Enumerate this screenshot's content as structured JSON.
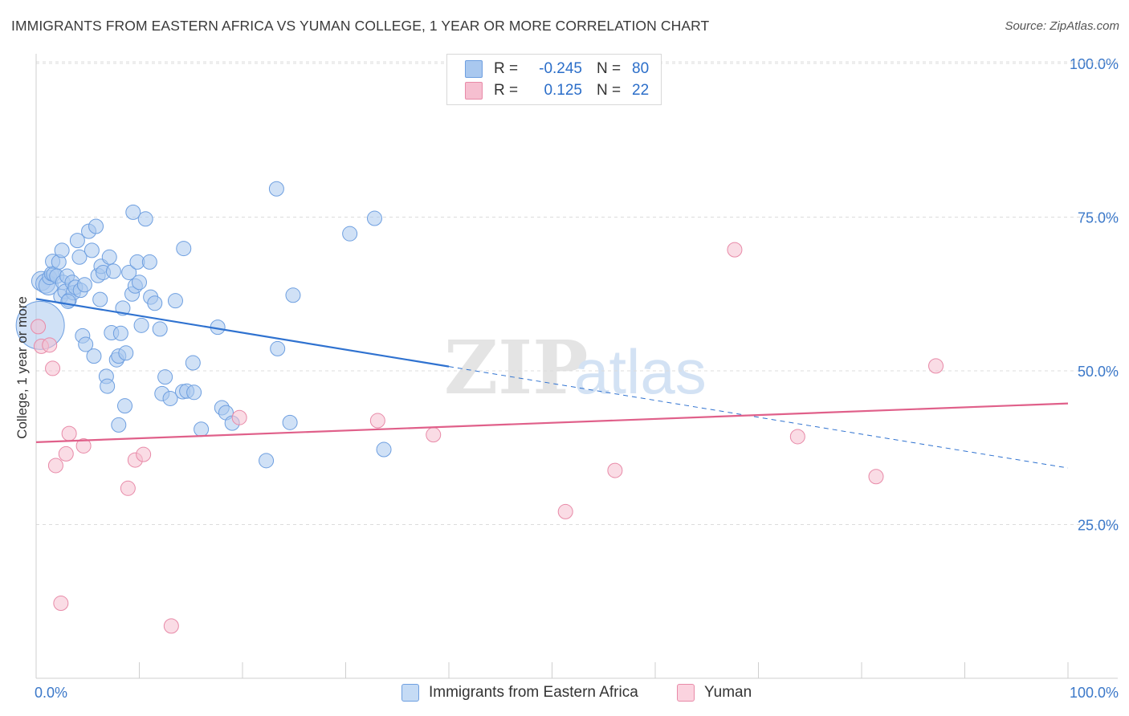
{
  "title": "IMMIGRANTS FROM EASTERN AFRICA VS YUMAN COLLEGE, 1 YEAR OR MORE CORRELATION CHART",
  "source": "Source: ZipAtlas.com",
  "watermark": {
    "zip": "ZIP",
    "atlas": "atlas"
  },
  "legend": {
    "rows": [
      {
        "r_label": "R =",
        "r_value": "-0.245",
        "n_label": "N =",
        "n_value": "80",
        "color": "#a9c8ef",
        "stroke": "#6e9fe0"
      },
      {
        "r_label": "R =",
        "r_value": "0.125",
        "n_label": "N =",
        "n_value": "22",
        "color": "#f6bfd0",
        "stroke": "#e88aa8"
      }
    ]
  },
  "bottom_legend": [
    {
      "label": "Immigrants from Eastern Africa",
      "color": "#c5dbf5",
      "stroke": "#6e9fe0"
    },
    {
      "label": "Yuman",
      "color": "#fbd3df",
      "stroke": "#e88aa8"
    }
  ],
  "chart_data": {
    "type": "scatter",
    "xlabel": "",
    "ylabel": "College, 1 year or more",
    "xlim": [
      0,
      100
    ],
    "ylim": [
      0,
      100
    ],
    "x_tick_labels": [
      "0.0%",
      "100.0%"
    ],
    "y_tick_labels": [
      "100.0%",
      "75.0%",
      "50.0%",
      "25.0%"
    ],
    "y_tick_values": [
      100,
      75,
      50,
      25
    ],
    "grid": true,
    "series": [
      {
        "name": "Immigrants from Eastern Africa",
        "color": "#6e9fe0",
        "fill": "#a9c8ef",
        "trend": {
          "x": [
            0,
            40
          ],
          "y": [
            61.7,
            50.7
          ],
          "dashed_x": [
            40,
            100
          ],
          "dashed_y": [
            50.7,
            34.2
          ],
          "color": "#2f72d0"
        },
        "points": [
          [
            0.4,
            57.4,
            30
          ],
          [
            0.5,
            64.6,
            12
          ],
          [
            0.9,
            64.2,
            12
          ],
          [
            1.2,
            63.9,
            12
          ],
          [
            1.3,
            65.2,
            9
          ],
          [
            1.5,
            65.8,
            9
          ],
          [
            1.6,
            67.8,
            9
          ],
          [
            1.7,
            65.7,
            9
          ],
          [
            2.0,
            65.4,
            9
          ],
          [
            2.2,
            67.7,
            9
          ],
          [
            2.4,
            62.1,
            9
          ],
          [
            2.5,
            69.6,
            9
          ],
          [
            2.6,
            64.4,
            9
          ],
          [
            2.8,
            62.9,
            9
          ],
          [
            3.0,
            65.4,
            9
          ],
          [
            3.2,
            61.5,
            9
          ],
          [
            3.5,
            64.4,
            9
          ],
          [
            3.6,
            62.7,
            9
          ],
          [
            3.8,
            63.6,
            9
          ],
          [
            4.0,
            71.2,
            9
          ],
          [
            4.2,
            68.5,
            9
          ],
          [
            4.3,
            63.1,
            9
          ],
          [
            4.5,
            55.7,
            9
          ],
          [
            4.7,
            64.0,
            9
          ],
          [
            4.8,
            54.3,
            9
          ],
          [
            5.1,
            72.7,
            9
          ],
          [
            5.4,
            69.6,
            9
          ],
          [
            5.6,
            52.4,
            9
          ],
          [
            5.8,
            73.5,
            9
          ],
          [
            6.0,
            65.5,
            9
          ],
          [
            6.2,
            61.6,
            9
          ],
          [
            6.3,
            67.0,
            9
          ],
          [
            6.5,
            66.0,
            9
          ],
          [
            6.8,
            49.1,
            9
          ],
          [
            6.9,
            47.5,
            9
          ],
          [
            7.1,
            68.5,
            9
          ],
          [
            7.3,
            56.2,
            9
          ],
          [
            7.5,
            66.2,
            9
          ],
          [
            7.8,
            51.8,
            9
          ],
          [
            8.0,
            52.4,
            9
          ],
          [
            8.0,
            41.2,
            9
          ],
          [
            8.2,
            56.1,
            9
          ],
          [
            8.4,
            60.2,
            9
          ],
          [
            8.6,
            44.3,
            9
          ],
          [
            8.7,
            52.9,
            9
          ],
          [
            9.0,
            66.0,
            9
          ],
          [
            9.3,
            62.5,
            9
          ],
          [
            9.4,
            75.8,
            9
          ],
          [
            9.6,
            63.8,
            9
          ],
          [
            9.8,
            67.7,
            9
          ],
          [
            10.0,
            64.4,
            9
          ],
          [
            10.2,
            57.4,
            9
          ],
          [
            10.6,
            74.7,
            9
          ],
          [
            11.0,
            67.7,
            9
          ],
          [
            11.1,
            62.0,
            9
          ],
          [
            11.5,
            61.0,
            9
          ],
          [
            12.0,
            56.8,
            9
          ],
          [
            12.2,
            46.3,
            9
          ],
          [
            12.5,
            49.0,
            9
          ],
          [
            13.0,
            45.5,
            9
          ],
          [
            13.5,
            61.4,
            9
          ],
          [
            14.2,
            46.6,
            9
          ],
          [
            14.3,
            69.9,
            9
          ],
          [
            14.6,
            46.7,
            9
          ],
          [
            15.2,
            51.3,
            9
          ],
          [
            15.3,
            46.5,
            9
          ],
          [
            16.0,
            40.5,
            9
          ],
          [
            17.6,
            57.1,
            9
          ],
          [
            18.0,
            44.0,
            9
          ],
          [
            18.4,
            43.2,
            9
          ],
          [
            19.0,
            41.5,
            9
          ],
          [
            22.3,
            35.4,
            9
          ],
          [
            23.3,
            79.6,
            9
          ],
          [
            23.4,
            53.6,
            9
          ],
          [
            24.6,
            41.6,
            9
          ],
          [
            24.9,
            62.3,
            9
          ],
          [
            30.4,
            72.3,
            9
          ],
          [
            32.8,
            74.8,
            9
          ],
          [
            33.7,
            37.2,
            9
          ],
          [
            3.1,
            61.3,
            9
          ]
        ]
      },
      {
        "name": "Yuman",
        "color": "#e88aa8",
        "fill": "#f6bfd0",
        "trend": {
          "x": [
            0,
            100
          ],
          "y": [
            38.4,
            44.7
          ],
          "color": "#e0608a"
        },
        "points": [
          [
            0.2,
            57.2,
            9
          ],
          [
            0.5,
            54.0,
            9
          ],
          [
            1.3,
            54.2,
            9
          ],
          [
            1.6,
            50.4,
            9
          ],
          [
            1.9,
            34.6,
            9
          ],
          [
            2.9,
            36.5,
            9
          ],
          [
            3.2,
            39.8,
            9
          ],
          [
            4.6,
            37.8,
            9
          ],
          [
            2.4,
            12.2,
            9
          ],
          [
            8.9,
            30.9,
            9
          ],
          [
            9.6,
            35.5,
            9
          ],
          [
            10.4,
            36.4,
            9
          ],
          [
            13.1,
            8.5,
            9
          ],
          [
            19.7,
            42.4,
            9
          ],
          [
            33.1,
            41.9,
            9
          ],
          [
            38.5,
            39.6,
            9
          ],
          [
            51.3,
            27.1,
            9
          ],
          [
            56.1,
            33.8,
            9
          ],
          [
            67.7,
            69.7,
            9
          ],
          [
            73.8,
            39.3,
            9
          ],
          [
            81.4,
            32.8,
            9
          ],
          [
            87.2,
            50.8,
            9
          ]
        ]
      }
    ]
  }
}
